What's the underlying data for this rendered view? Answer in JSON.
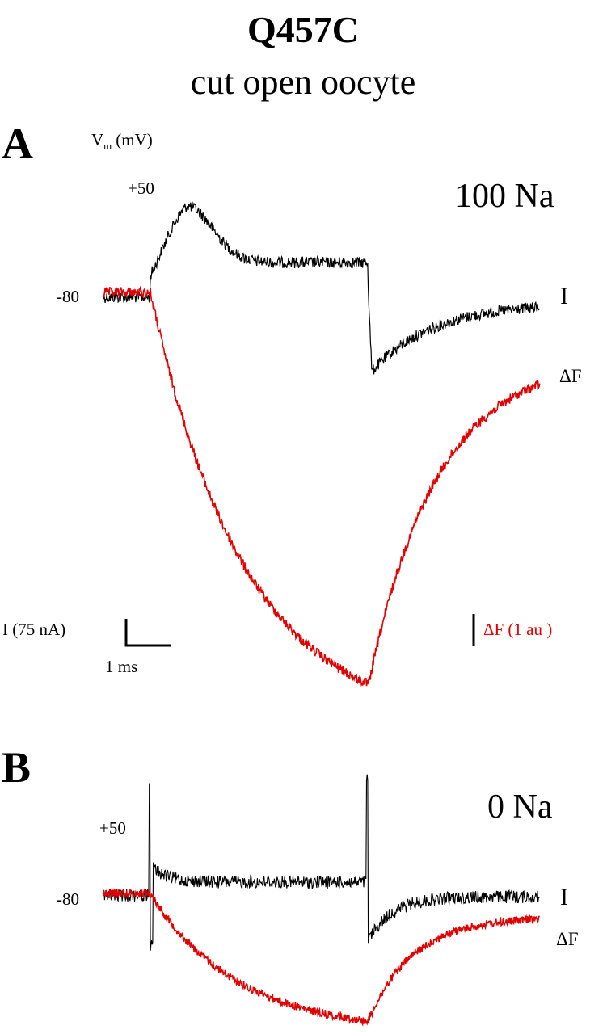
{
  "title": "Q457C",
  "subtitle": "cut open oocyte",
  "panels": [
    {
      "label": "A",
      "voltage_axis": {
        "symbol": "V",
        "subscript": "m",
        "units": "(mV)"
      },
      "step_voltage": "+50",
      "holding_voltage": "-80",
      "condition": "100 Na",
      "trace_labels": [
        "I",
        "ΔF"
      ],
      "scale_bars": {
        "current": "I (75 nA)",
        "time": "1 ms",
        "fluorescence": "ΔF (1 au )"
      }
    },
    {
      "label": "B",
      "step_voltage": "+50",
      "holding_voltage": "-80",
      "condition": "0 Na",
      "trace_labels": [
        "I",
        "ΔF"
      ]
    }
  ]
}
